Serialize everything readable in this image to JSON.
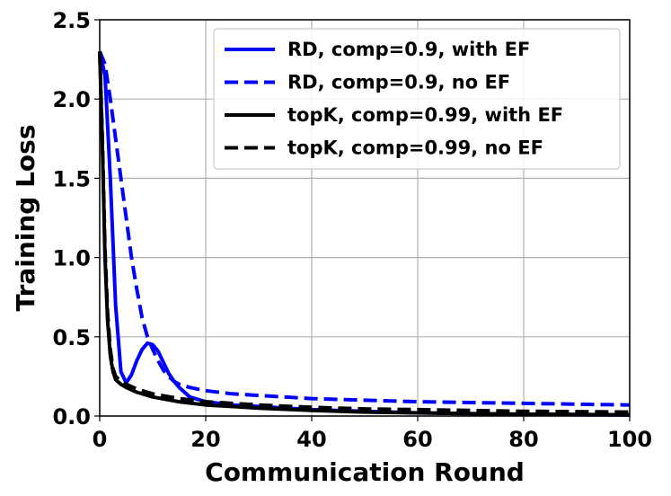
{
  "chart_data": {
    "type": "line",
    "title": "",
    "xlabel": "Communication Round",
    "ylabel": "Training Loss",
    "xlim": [
      0,
      100
    ],
    "ylim": [
      0,
      2.5
    ],
    "xticks": [
      "0",
      "20",
      "40",
      "60",
      "80",
      "100"
    ],
    "yticks": [
      "0.0",
      "0.5",
      "1.0",
      "1.5",
      "2.0",
      "2.5"
    ],
    "grid": true,
    "legend_position": "top-right",
    "series": [
      {
        "name": "RD, comp=0.9, with EF",
        "color": "#0000ff",
        "dash": "solid",
        "x": [
          0,
          1,
          2,
          3,
          4,
          5,
          6,
          7,
          8,
          9,
          10,
          11,
          12,
          13,
          14,
          15,
          17,
          20,
          25,
          30,
          40,
          50,
          60,
          70,
          80,
          90,
          100
        ],
        "y": [
          2.3,
          2.15,
          1.5,
          0.7,
          0.28,
          0.21,
          0.26,
          0.35,
          0.42,
          0.46,
          0.45,
          0.41,
          0.34,
          0.27,
          0.22,
          0.18,
          0.12,
          0.09,
          0.07,
          0.06,
          0.04,
          0.03,
          0.02,
          0.015,
          0.01,
          0.008,
          0.006
        ]
      },
      {
        "name": "RD, comp=0.9, no EF",
        "color": "#0000ff",
        "dash": "dashed",
        "x": [
          0,
          1,
          2,
          3,
          4,
          5,
          6,
          7,
          8,
          9,
          10,
          11,
          12,
          13,
          14,
          15,
          17,
          20,
          25,
          30,
          40,
          50,
          60,
          70,
          80,
          90,
          100
        ],
        "y": [
          2.3,
          2.22,
          2.0,
          1.75,
          1.5,
          1.25,
          1.0,
          0.8,
          0.62,
          0.5,
          0.42,
          0.35,
          0.29,
          0.25,
          0.22,
          0.2,
          0.18,
          0.16,
          0.14,
          0.13,
          0.11,
          0.1,
          0.09,
          0.085,
          0.08,
          0.075,
          0.07
        ]
      },
      {
        "name": "topK, comp=0.99, with EF",
        "color": "#000000",
        "dash": "solid",
        "x": [
          0,
          0.5,
          1,
          1.5,
          2,
          2.5,
          3,
          4,
          5,
          7,
          10,
          15,
          20,
          30,
          40,
          50,
          60,
          70,
          80,
          90,
          100
        ],
        "y": [
          2.3,
          1.7,
          1.0,
          0.6,
          0.38,
          0.28,
          0.23,
          0.2,
          0.18,
          0.15,
          0.12,
          0.09,
          0.07,
          0.05,
          0.035,
          0.025,
          0.02,
          0.015,
          0.012,
          0.01,
          0.008
        ]
      },
      {
        "name": "topK, comp=0.99, no EF",
        "color": "#000000",
        "dash": "dashed",
        "x": [
          0,
          0.5,
          1,
          1.5,
          2,
          2.5,
          3,
          4,
          5,
          7,
          10,
          15,
          20,
          30,
          40,
          50,
          60,
          70,
          80,
          90,
          100
        ],
        "y": [
          2.3,
          1.75,
          1.05,
          0.65,
          0.42,
          0.3,
          0.25,
          0.22,
          0.2,
          0.17,
          0.14,
          0.11,
          0.09,
          0.07,
          0.055,
          0.045,
          0.04,
          0.035,
          0.03,
          0.028,
          0.025
        ]
      }
    ]
  }
}
